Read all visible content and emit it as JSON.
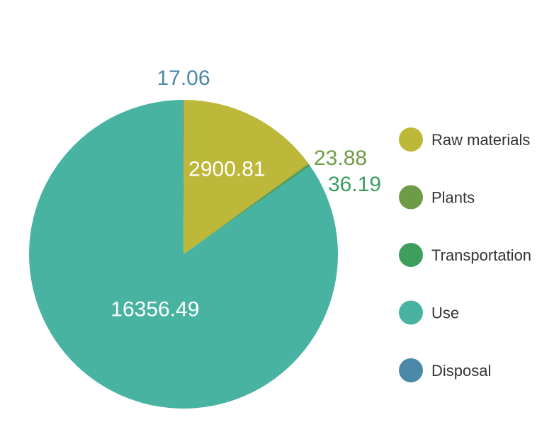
{
  "chart_data": {
    "type": "pie",
    "categories": [
      "Raw materials",
      "Plants",
      "Transportation",
      "Use",
      "Disposal"
    ],
    "values": [
      2900.81,
      23.88,
      36.19,
      16356.49,
      17.06
    ],
    "value_labels": [
      "2900.81",
      "23.88",
      "36.19",
      "16356.49",
      "17.06"
    ],
    "colors": [
      "#BDB73A",
      "#6E9B45",
      "#3E9E5E",
      "#49B3A2",
      "#4A87A8"
    ],
    "label_colors": [
      "#ffffff",
      "#6E9B45",
      "#3E9E5E",
      "#ffffff",
      "#4A87A8"
    ],
    "start_angle_deg": 0,
    "direction": "clockwise",
    "legend_position": "right"
  }
}
